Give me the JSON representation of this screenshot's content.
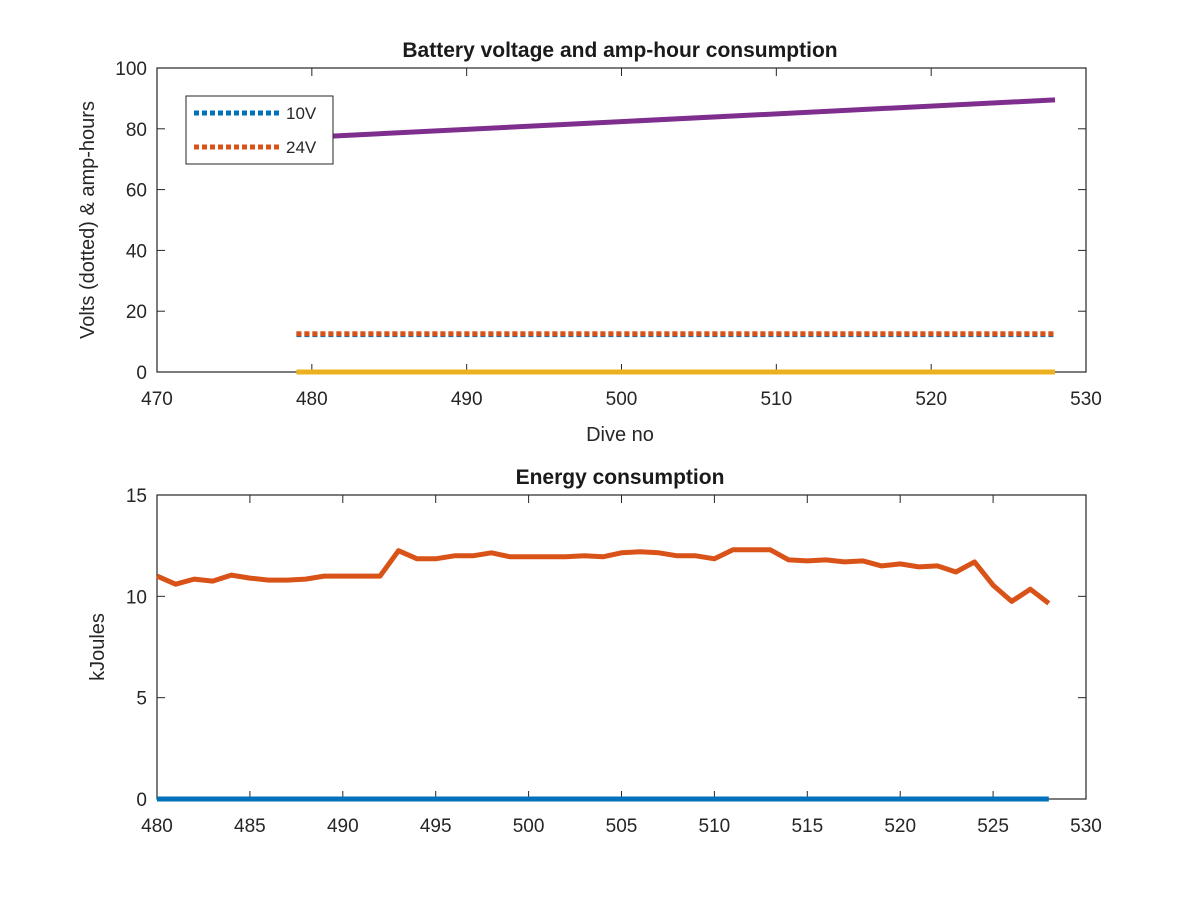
{
  "chart_data": [
    {
      "type": "line",
      "title": "Battery voltage and amp-hour consumption",
      "xlabel": "Dive no",
      "ylabel": "Volts (dotted) & amp-hours",
      "xlim": [
        470,
        530
      ],
      "ylim": [
        0,
        100
      ],
      "xticks": [
        470,
        480,
        490,
        500,
        510,
        520,
        530
      ],
      "yticks": [
        0,
        20,
        40,
        60,
        80,
        100
      ],
      "grid": false,
      "legend_position": "top-left",
      "series": [
        {
          "name": "10V",
          "style": "dotted",
          "color": "#0072bd",
          "x": [
            479,
            528
          ],
          "y": [
            12.3,
            12.3
          ]
        },
        {
          "name": "24V",
          "style": "dotted",
          "color": "#d95319",
          "x": [
            479,
            528
          ],
          "y": [
            12.6,
            12.6
          ]
        },
        {
          "style": "solid",
          "color": "#edb120",
          "x": [
            479,
            528
          ],
          "y": [
            0,
            0
          ]
        },
        {
          "style": "solid",
          "color": "#7e2f8e",
          "x": [
            479,
            528
          ],
          "y": [
            77,
            89.5
          ]
        }
      ]
    },
    {
      "type": "line",
      "title": "Energy consumption",
      "xlabel": "",
      "ylabel": "kJoules",
      "xlim": [
        480,
        530
      ],
      "ylim": [
        0,
        15
      ],
      "xticks": [
        480,
        485,
        490,
        495,
        500,
        505,
        510,
        515,
        520,
        525,
        530
      ],
      "yticks": [
        0,
        5,
        10,
        15
      ],
      "grid": false,
      "series": [
        {
          "style": "solid",
          "color": "#d95319",
          "x": [
            480,
            481,
            482,
            483,
            484,
            485,
            486,
            487,
            488,
            489,
            490,
            491,
            492,
            493,
            494,
            495,
            496,
            497,
            498,
            499,
            500,
            501,
            502,
            503,
            504,
            505,
            506,
            507,
            508,
            509,
            510,
            511,
            512,
            513,
            514,
            515,
            516,
            517,
            518,
            519,
            520,
            521,
            522,
            523,
            524,
            525,
            526,
            527,
            528
          ],
          "y": [
            11.0,
            10.6,
            10.85,
            10.75,
            11.05,
            10.9,
            10.8,
            10.8,
            10.85,
            11.0,
            11.0,
            11.0,
            11.0,
            12.25,
            11.85,
            11.85,
            12.0,
            12.0,
            12.15,
            11.95,
            11.95,
            11.95,
            11.95,
            12.0,
            11.95,
            12.15,
            12.2,
            12.15,
            12.0,
            12.0,
            11.85,
            12.3,
            12.3,
            12.3,
            11.8,
            11.75,
            11.8,
            11.7,
            11.75,
            11.5,
            11.6,
            11.45,
            11.5,
            11.2,
            11.7,
            10.55,
            9.75,
            10.35,
            9.65
          ]
        },
        {
          "style": "solid",
          "color": "#0072bd",
          "x": [
            480,
            528
          ],
          "y": [
            0,
            0
          ]
        }
      ]
    }
  ]
}
